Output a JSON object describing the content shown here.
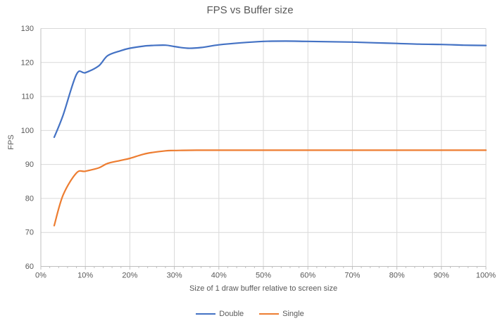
{
  "chart_data": {
    "type": "line",
    "title": "FPS vs Buffer size",
    "xlabel": "Size of 1 draw buffer relative to screen size",
    "ylabel": "FPS",
    "xlim": [
      0,
      100
    ],
    "ylim": [
      60,
      130
    ],
    "grid": true,
    "legend_position": "bottom",
    "x_tick_labels": [
      "0%",
      "10%",
      "20%",
      "30%",
      "40%",
      "50%",
      "60%",
      "70%",
      "80%",
      "90%",
      "100%"
    ],
    "x_tick_values": [
      0,
      10,
      20,
      30,
      40,
      50,
      60,
      70,
      80,
      90,
      100
    ],
    "x_minor_tick_step": 2,
    "y_tick_labels": [
      "60",
      "70",
      "80",
      "90",
      "100",
      "110",
      "120",
      "130"
    ],
    "y_tick_values": [
      60,
      70,
      80,
      90,
      100,
      110,
      120,
      130
    ],
    "colors": {
      "gridline": "#d9d9d9",
      "axis_line": "#bfbfbf",
      "tick": "#bfbfbf",
      "label_text": "#595959",
      "series_double": "#4472c4",
      "series_single": "#ed7d31"
    },
    "series": [
      {
        "name": "Double",
        "color": "#4472c4",
        "x": [
          3,
          5,
          8,
          10,
          13,
          15,
          18,
          20,
          23,
          25,
          28,
          30,
          33,
          36,
          40,
          45,
          50,
          55,
          60,
          65,
          70,
          75,
          80,
          85,
          90,
          95,
          100
        ],
        "y": [
          98,
          104.5,
          116.5,
          117,
          119,
          122,
          123.5,
          124.2,
          124.8,
          125,
          125.1,
          124.7,
          124.2,
          124.4,
          125.2,
          125.8,
          126.2,
          126.3,
          126.2,
          126.1,
          126,
          125.8,
          125.6,
          125.4,
          125.3,
          125.1,
          125
        ]
      },
      {
        "name": "Single",
        "color": "#ed7d31",
        "x": [
          3,
          5,
          8,
          10,
          13,
          15,
          18,
          20,
          23,
          25,
          28,
          30,
          35,
          40,
          45,
          50,
          55,
          60,
          65,
          70,
          75,
          80,
          85,
          90,
          95,
          100
        ],
        "y": [
          72,
          81,
          87.5,
          88,
          89,
          90.3,
          91.2,
          91.8,
          93,
          93.5,
          94,
          94.1,
          94.2,
          94.2,
          94.2,
          94.2,
          94.2,
          94.2,
          94.2,
          94.2,
          94.2,
          94.2,
          94.2,
          94.2,
          94.2,
          94.2
        ]
      }
    ]
  }
}
